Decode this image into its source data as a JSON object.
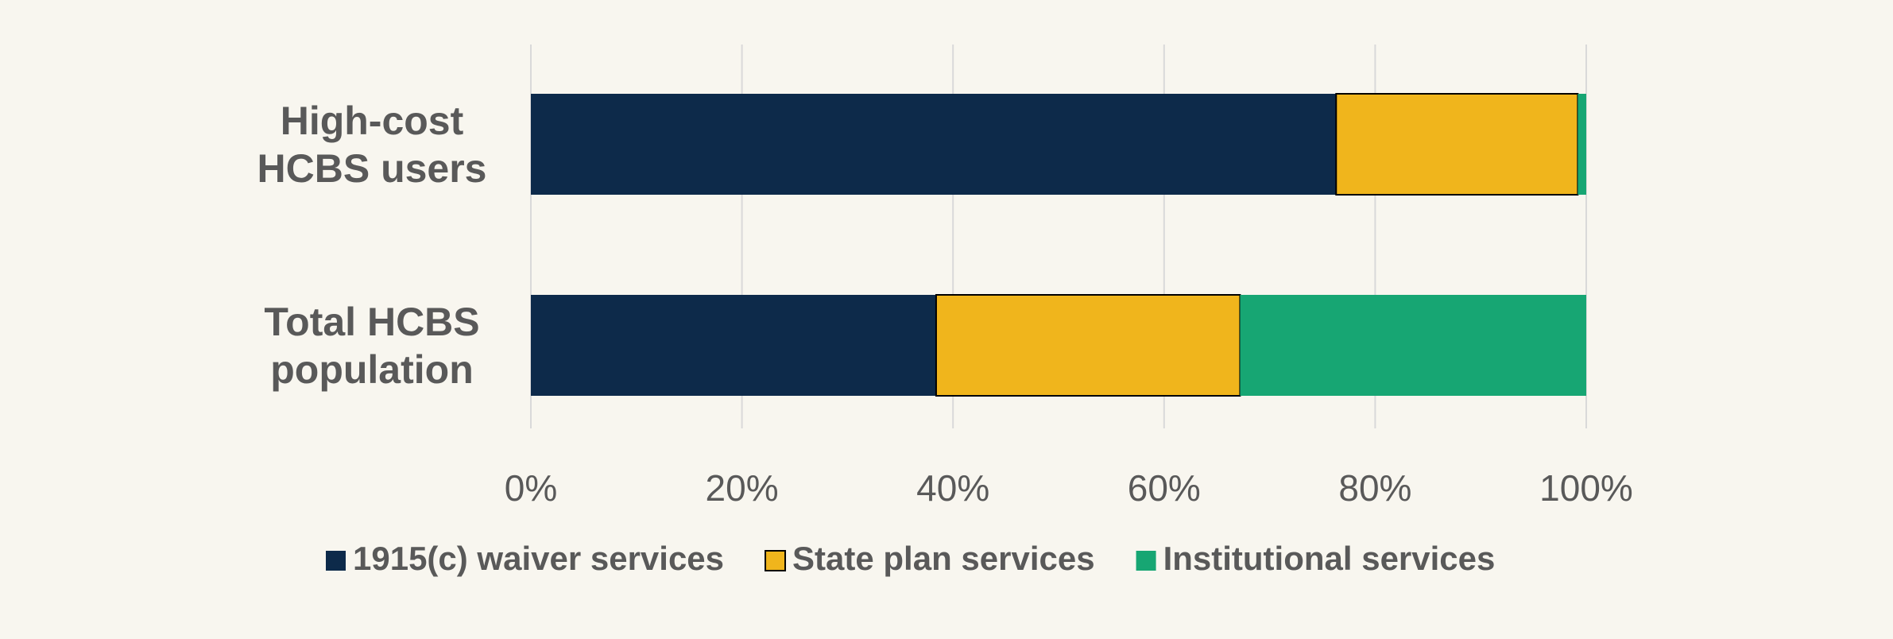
{
  "chart_data": {
    "type": "stacked-bar-horizontal",
    "categories": [
      "High-cost HCBS users",
      "Total HCBS population"
    ],
    "series": [
      {
        "name": "1915(c) waiver services",
        "color": "#0d2a4a",
        "values": [
          76.3,
          38.4
        ]
      },
      {
        "name": "State plan services",
        "color": "#f0b51c",
        "values": [
          22.9,
          28.8
        ]
      },
      {
        "name": "Institutional services",
        "color": "#17a673",
        "values": [
          0.8,
          32.8
        ]
      }
    ],
    "xlim": [
      0,
      100
    ],
    "xticks": [
      {
        "value": 0,
        "label": "0%"
      },
      {
        "value": 20,
        "label": "20%"
      },
      {
        "value": 40,
        "label": "40%"
      },
      {
        "value": 60,
        "label": "60%"
      },
      {
        "value": 80,
        "label": "80%"
      },
      {
        "value": 100,
        "label": "100%"
      }
    ],
    "grid": true,
    "legend": "bottom"
  }
}
